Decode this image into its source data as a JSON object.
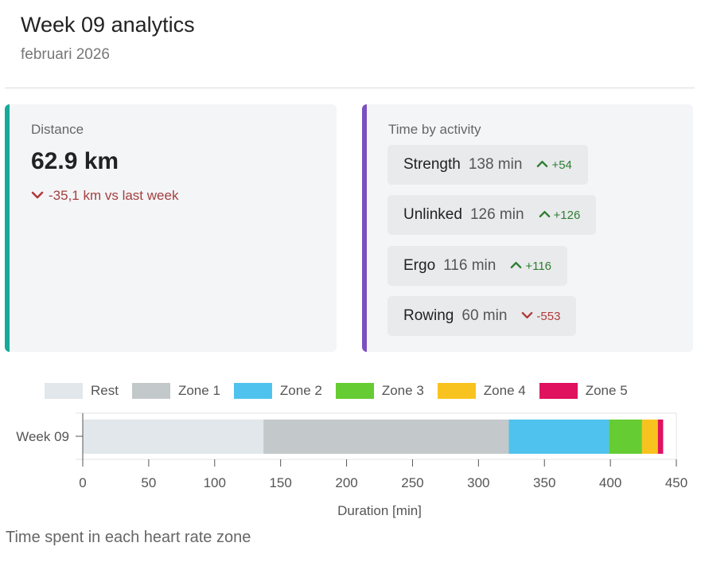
{
  "header": {
    "title": "Week 09 analytics",
    "subtitle": "februari 2026"
  },
  "distance_card": {
    "label": "Distance",
    "value": "62.9 km",
    "delta_text": "-35,1 km vs last week",
    "delta_direction": "down"
  },
  "activity_card": {
    "label": "Time by activity",
    "items": [
      {
        "name": "Strength",
        "minutes": "138 min",
        "delta": "+54",
        "direction": "up"
      },
      {
        "name": "Unlinked",
        "minutes": "126 min",
        "delta": "+126",
        "direction": "up"
      },
      {
        "name": "Ergo",
        "minutes": "116 min",
        "delta": "+116",
        "direction": "up"
      },
      {
        "name": "Rowing",
        "minutes": "60 min",
        "delta": "-553",
        "direction": "down"
      }
    ]
  },
  "colors": {
    "distance_accent": "#17a99b",
    "activity_accent": "#7b4fbf",
    "up": "#2e7d32",
    "down": "#b03a3a"
  },
  "chart_data": {
    "type": "bar",
    "orientation": "horizontal",
    "stacked": true,
    "categories": [
      "Week 09"
    ],
    "series": [
      {
        "name": "Rest",
        "values": [
          137
        ],
        "color": "#e1e7ea"
      },
      {
        "name": "Zone 1",
        "values": [
          186
        ],
        "color": "#c3c8cb"
      },
      {
        "name": "Zone 2",
        "values": [
          76
        ],
        "color": "#4fc3ee"
      },
      {
        "name": "Zone 3",
        "values": [
          25
        ],
        "color": "#66cc33"
      },
      {
        "name": "Zone 4",
        "values": [
          12
        ],
        "color": "#f9c31f"
      },
      {
        "name": "Zone 5",
        "values": [
          4
        ],
        "color": "#e0115f"
      }
    ],
    "xlabel": "Duration [min]",
    "ylabel": "",
    "xlim": [
      0,
      450
    ],
    "xticks": [
      0,
      50,
      100,
      150,
      200,
      250,
      300,
      350,
      400,
      450
    ],
    "grid": false,
    "legend": "top"
  },
  "caption": "Time spent in each heart rate zone"
}
